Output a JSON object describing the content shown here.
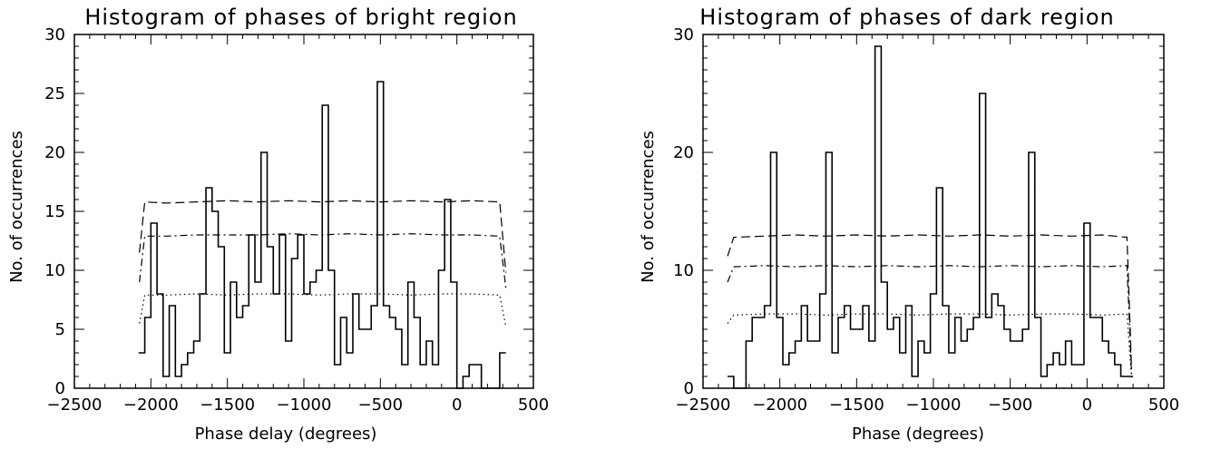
{
  "colors": {
    "ink": "#000000",
    "background": "#ffffff"
  },
  "chart_data": [
    {
      "type": "line",
      "title": "Histogram of phases of bright region",
      "xlabel": "Phase delay (degrees)",
      "ylabel": "No. of occurrences",
      "xlim": [
        -2500,
        500
      ],
      "ylim": [
        0,
        30
      ],
      "xticks": [
        -2500,
        -2000,
        -1500,
        -1000,
        -500,
        0,
        500
      ],
      "xtick_labels": [
        "−2500",
        "−2000",
        "−1500",
        "−1000",
        "−500",
        "0",
        "500"
      ],
      "yticks": [
        0,
        5,
        10,
        15,
        20,
        25,
        30
      ],
      "ytick_labels": [
        "0",
        "5",
        "10",
        "15",
        "20",
        "25",
        "30"
      ],
      "grid": false,
      "series": [
        {
          "style": "histogram-step",
          "bin_width": 40,
          "x": [
            -2060,
            -2020,
            -1980,
            -1940,
            -1900,
            -1860,
            -1820,
            -1780,
            -1740,
            -1700,
            -1660,
            -1620,
            -1580,
            -1540,
            -1500,
            -1460,
            -1420,
            -1380,
            -1340,
            -1300,
            -1260,
            -1220,
            -1180,
            -1140,
            -1100,
            -1060,
            -1020,
            -980,
            -940,
            -900,
            -860,
            -820,
            -780,
            -740,
            -700,
            -660,
            -620,
            -580,
            -540,
            -500,
            -460,
            -420,
            -380,
            -340,
            -300,
            -260,
            -220,
            -180,
            -140,
            -100,
            -60,
            -20,
            20,
            60,
            100,
            140,
            180,
            220,
            260,
            300
          ],
          "values": [
            3,
            6,
            14,
            8,
            1,
            7,
            1,
            2,
            3,
            4,
            8,
            17,
            15,
            12,
            3,
            9,
            6,
            7,
            13,
            9,
            20,
            12,
            8,
            13,
            4,
            11,
            13,
            8,
            9,
            10,
            24,
            10,
            2,
            6,
            3,
            8,
            5,
            5,
            7,
            26,
            7,
            6,
            5,
            2,
            9,
            6,
            2,
            4,
            2,
            10,
            16,
            9,
            0,
            1,
            2,
            2,
            0,
            0,
            0,
            3
          ]
        },
        {
          "style": "dashed",
          "x": [
            -2075,
            -2040,
            -1900,
            -1700,
            -1500,
            -1300,
            -1100,
            -900,
            -700,
            -500,
            -300,
            -100,
            100,
            280,
            320
          ],
          "values": [
            11.5,
            15.8,
            15.7,
            15.8,
            15.9,
            15.8,
            15.9,
            15.8,
            15.9,
            15.8,
            15.9,
            15.8,
            15.9,
            15.8,
            9.8
          ]
        },
        {
          "style": "dash-dot",
          "x": [
            -2075,
            -2040,
            -1900,
            -1700,
            -1500,
            -1300,
            -1100,
            -900,
            -700,
            -500,
            -300,
            -100,
            100,
            280,
            320
          ],
          "values": [
            9.0,
            12.9,
            12.9,
            13.0,
            13.0,
            13.0,
            13.1,
            13.0,
            13.1,
            13.0,
            13.1,
            13.0,
            13.0,
            12.9,
            8.5
          ]
        },
        {
          "style": "dotted",
          "x": [
            -2075,
            -2040,
            -1900,
            -1700,
            -1500,
            -1300,
            -1100,
            -900,
            -700,
            -500,
            -300,
            -100,
            100,
            280,
            320
          ],
          "values": [
            5.5,
            7.9,
            7.9,
            8.0,
            7.9,
            8.0,
            8.0,
            7.9,
            8.0,
            8.0,
            7.9,
            8.0,
            8.0,
            7.9,
            5.2
          ]
        }
      ]
    },
    {
      "type": "line",
      "title": "Histogram of phases of dark region",
      "xlabel": "Phase (degrees)",
      "ylabel": "No. of occurrences",
      "xlim": [
        -2500,
        500
      ],
      "ylim": [
        0,
        30
      ],
      "xticks": [
        -2500,
        -2000,
        -1500,
        -1000,
        -500,
        0,
        500
      ],
      "xtick_labels": [
        "−2500",
        "−2000",
        "−1500",
        "−1000",
        "−500",
        "0",
        "500"
      ],
      "yticks": [
        0,
        10,
        20,
        30
      ],
      "ytick_labels": [
        "0",
        "10",
        "20",
        "30"
      ],
      "grid": false,
      "series": [
        {
          "style": "histogram-step",
          "bin_width": 40,
          "x": [
            -2320,
            -2280,
            -2240,
            -2200,
            -2160,
            -2120,
            -2080,
            -2040,
            -2000,
            -1960,
            -1920,
            -1880,
            -1840,
            -1800,
            -1760,
            -1720,
            -1680,
            -1640,
            -1600,
            -1560,
            -1520,
            -1480,
            -1440,
            -1400,
            -1360,
            -1320,
            -1280,
            -1240,
            -1200,
            -1160,
            -1120,
            -1080,
            -1040,
            -1000,
            -960,
            -920,
            -880,
            -840,
            -800,
            -760,
            -720,
            -680,
            -640,
            -600,
            -560,
            -520,
            -480,
            -440,
            -400,
            -360,
            -320,
            -280,
            -240,
            -200,
            -160,
            -120,
            -80,
            -40,
            0,
            40,
            80,
            120,
            160,
            200,
            240,
            280
          ],
          "values": [
            1,
            0,
            0,
            4,
            6,
            6,
            7,
            20,
            6,
            2,
            3,
            4,
            7,
            4,
            4,
            8,
            20,
            3,
            6,
            7,
            5,
            5,
            7,
            4,
            29,
            9,
            5,
            6,
            3,
            7,
            1,
            4,
            3,
            8,
            17,
            7,
            3,
            6,
            4,
            5,
            6,
            25,
            6,
            8,
            7,
            5,
            4,
            4,
            5,
            20,
            6,
            1,
            2,
            3,
            2,
            4,
            2,
            2,
            14,
            6,
            6,
            4,
            3,
            2,
            1,
            1
          ]
        },
        {
          "style": "dashed",
          "x": [
            -2340,
            -2300,
            -2100,
            -1900,
            -1700,
            -1500,
            -1300,
            -1100,
            -900,
            -700,
            -500,
            -300,
            -100,
            100,
            260,
            290
          ],
          "values": [
            11.2,
            12.8,
            12.9,
            13.0,
            12.9,
            13.0,
            12.9,
            13.0,
            12.9,
            13.0,
            12.9,
            13.0,
            12.9,
            13.0,
            12.8,
            1.6
          ]
        },
        {
          "style": "dash-dot",
          "x": [
            -2340,
            -2300,
            -2100,
            -1900,
            -1700,
            -1500,
            -1300,
            -1100,
            -900,
            -700,
            -500,
            -300,
            -100,
            100,
            260,
            290
          ],
          "values": [
            9.0,
            10.3,
            10.4,
            10.3,
            10.4,
            10.3,
            10.4,
            10.3,
            10.4,
            10.3,
            10.4,
            10.3,
            10.4,
            10.3,
            10.4,
            1.2
          ]
        },
        {
          "style": "dotted",
          "x": [
            -2340,
            -2300,
            -2100,
            -1900,
            -1700,
            -1500,
            -1300,
            -1100,
            -900,
            -700,
            -500,
            -300,
            -100,
            100,
            260,
            290
          ],
          "values": [
            5.5,
            6.2,
            6.3,
            6.3,
            6.2,
            6.3,
            6.3,
            6.2,
            6.3,
            6.3,
            6.2,
            6.3,
            6.3,
            6.2,
            6.3,
            0.9
          ]
        }
      ]
    }
  ]
}
